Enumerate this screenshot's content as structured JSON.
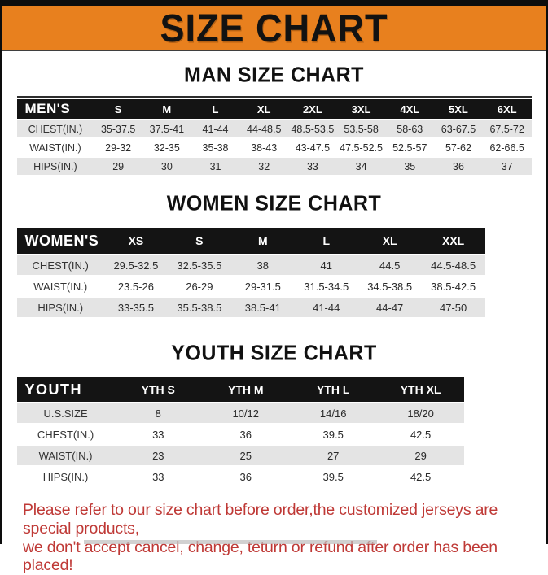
{
  "banner": {
    "title": "SIZE CHART"
  },
  "colors": {
    "banner_orange": "#e8801e",
    "table_header_black": "#141414",
    "row_gray": "#e4e4e4",
    "disclaimer_red": "#bf3936"
  },
  "sections": [
    {
      "id": "men",
      "heading": "MAN SIZE CHART",
      "table": {
        "header_label": "MEN'S",
        "columns": [
          "S",
          "M",
          "L",
          "XL",
          "2XL",
          "3XL",
          "4XL",
          "5XL",
          "6XL"
        ],
        "rows": [
          {
            "label": "CHEST(IN.)",
            "values": [
              "35-37.5",
              "37.5-41",
              "41-44",
              "44-48.5",
              "48.5-53.5",
              "53.5-58",
              "58-63",
              "63-67.5",
              "67.5-72"
            ]
          },
          {
            "label": "WAIST(IN.)",
            "values": [
              "29-32",
              "32-35",
              "35-38",
              "38-43",
              "43-47.5",
              "47.5-52.5",
              "52.5-57",
              "57-62",
              "62-66.5"
            ]
          },
          {
            "label": "HIPS(IN.)",
            "values": [
              "29",
              "30",
              "31",
              "32",
              "33",
              "34",
              "35",
              "36",
              "37"
            ]
          }
        ]
      }
    },
    {
      "id": "women",
      "heading": "WOMEN SIZE CHART",
      "table": {
        "header_label": "WOMEN'S",
        "columns": [
          "XS",
          "S",
          "M",
          "L",
          "XL",
          "XXL"
        ],
        "rows": [
          {
            "label": "CHEST(IN.)",
            "values": [
              "29.5-32.5",
              "32.5-35.5",
              "38",
              "41",
              "44.5",
              "44.5-48.5"
            ]
          },
          {
            "label": "WAIST(IN.)",
            "values": [
              "23.5-26",
              "26-29",
              "29-31.5",
              "31.5-34.5",
              "34.5-38.5",
              "38.5-42.5"
            ]
          },
          {
            "label": "HIPS(IN.)",
            "values": [
              "33-35.5",
              "35.5-38.5",
              "38.5-41",
              "41-44",
              "44-47",
              "47-50"
            ]
          }
        ]
      }
    },
    {
      "id": "youth",
      "heading": "YOUTH SIZE CHART",
      "table": {
        "header_label": "YOUTH",
        "columns": [
          "YTH S",
          "YTH M",
          "YTH L",
          "YTH XL"
        ],
        "rows": [
          {
            "label": "U.S.SIZE",
            "values": [
              "8",
              "10/12",
              "14/16",
              "18/20"
            ]
          },
          {
            "label": "CHEST(IN.)",
            "values": [
              "33",
              "36",
              "39.5",
              "42.5"
            ]
          },
          {
            "label": "WAIST(IN.)",
            "values": [
              "23",
              "25",
              "27",
              "29"
            ]
          },
          {
            "label": "HIPS(IN.)",
            "values": [
              "33",
              "36",
              "39.5",
              "42.5"
            ]
          }
        ]
      }
    }
  ],
  "disclaimer": {
    "line1": "Please refer to our size chart before order,the customized jerseys are special products,",
    "line2": "we don't accept cancel, change, teturn or refund after order has been placed!"
  }
}
